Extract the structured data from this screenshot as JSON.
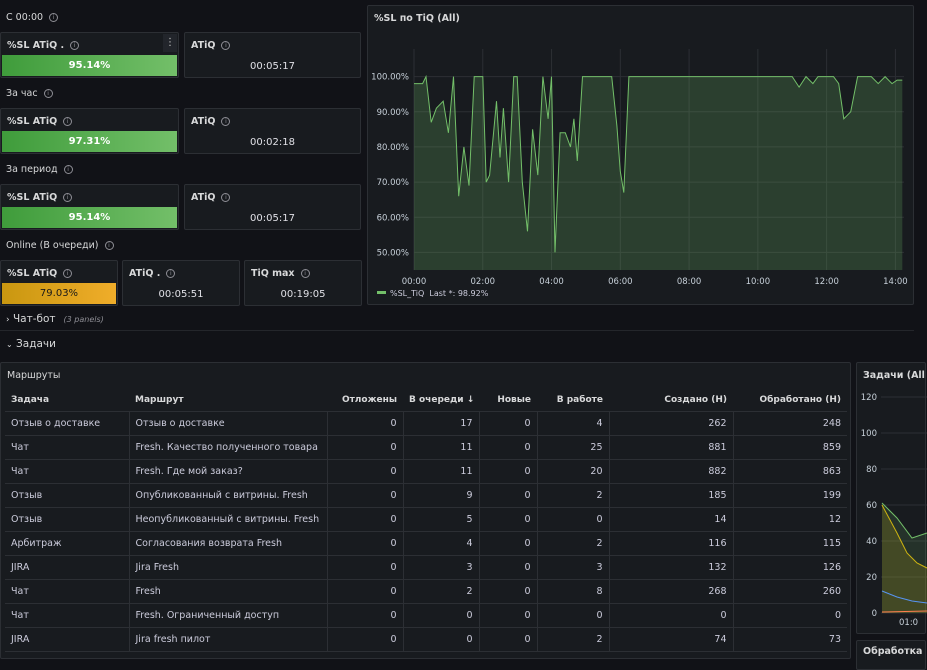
{
  "top_section": {
    "title": "С 00:00",
    "sl_label": "%SL ATiQ .",
    "sl_value": "95.14%",
    "atiq_label": "ATiQ",
    "atiq_value": "00:05:17"
  },
  "hour_section": {
    "title": "За час",
    "sl_label": "%SL ATiQ",
    "sl_value": "97.31%",
    "atiq_label": "ATiQ",
    "atiq_value": "00:02:18"
  },
  "period_section": {
    "title": "За период",
    "sl_label": "%SL ATiQ",
    "sl_value": "95.14%",
    "atiq_label": "ATiQ",
    "atiq_value": "00:05:17"
  },
  "online_section": {
    "title": "Online (В очереди)",
    "sl_label": "%SL ATiQ",
    "sl_value": "79.03%",
    "atiq_label": "ATiQ .",
    "atiq_value": "00:05:51",
    "tiqmax_label": "TiQ max",
    "tiqmax_value": "00:19:05"
  },
  "chatbot_row": {
    "title": "Чат-бот",
    "sub": "(3 panels)"
  },
  "tasks_row": {
    "title": "Задачи"
  },
  "sl_chart": {
    "title": "%SL по TiQ (All)",
    "legend_label": "%SL_TiQ",
    "legend_last": "Last *: 98.92%",
    "color": "#73bf69"
  },
  "chart_data": {
    "type": "area",
    "title": "%SL по TiQ (All)",
    "xlabel": "",
    "ylabel": "",
    "x_ticks": [
      "00:00",
      "02:00",
      "04:00",
      "06:00",
      "08:00",
      "10:00",
      "12:00",
      "14:00"
    ],
    "y_ticks": [
      "50.00%",
      "60.00%",
      "70.00%",
      "80.00%",
      "90.00%",
      "100.00%"
    ],
    "xlim": [
      0,
      14.25
    ],
    "ylim": [
      45,
      105
    ],
    "grid": true,
    "legend": "bottom-left",
    "series": [
      {
        "name": "%SL_TiQ",
        "x": [
          0,
          0.25,
          0.35,
          0.5,
          0.65,
          0.85,
          1.0,
          1.15,
          1.3,
          1.45,
          1.6,
          1.75,
          1.9,
          2.0,
          2.1,
          2.2,
          2.4,
          2.5,
          2.6,
          2.75,
          2.9,
          3.0,
          3.15,
          3.3,
          3.45,
          3.6,
          3.75,
          3.9,
          4.0,
          4.1,
          4.25,
          4.4,
          4.55,
          4.65,
          4.75,
          4.9,
          5.05,
          5.15,
          5.3,
          5.45,
          5.6,
          5.75,
          5.9,
          6.0,
          6.1,
          6.25,
          6.4,
          6.55,
          6.7,
          6.85,
          7.0,
          7.15,
          7.3,
          7.45,
          7.6,
          7.75,
          7.9,
          8.05,
          8.2,
          8.4,
          8.6,
          8.8,
          9.0,
          9.2,
          9.4,
          9.6,
          9.8,
          10.0,
          10.2,
          10.4,
          10.6,
          10.8,
          11.0,
          11.2,
          11.4,
          11.6,
          11.75,
          11.9,
          12.0,
          12.1,
          12.2,
          12.35,
          12.5,
          12.7,
          12.9,
          13.1,
          13.3,
          13.5,
          13.7,
          13.9,
          14.05,
          14.2
        ],
        "y": [
          98,
          98,
          100,
          87,
          91,
          93,
          84,
          100,
          66,
          80,
          69,
          100,
          100,
          100,
          70,
          72,
          93,
          77,
          91,
          70,
          100,
          100,
          70,
          56,
          85,
          72,
          100,
          88,
          100,
          50,
          84,
          84,
          80,
          88,
          76,
          100,
          100,
          100,
          100,
          100,
          100,
          100,
          86,
          73,
          67,
          100,
          100,
          100,
          100,
          100,
          100,
          100,
          100,
          100,
          100,
          100,
          100,
          100,
          100,
          100,
          100,
          100,
          100,
          100,
          100,
          100,
          100,
          100,
          100,
          100,
          100,
          100,
          100,
          97,
          100,
          98,
          100,
          100,
          100,
          100,
          100,
          98,
          88,
          90,
          100,
          100,
          100,
          98,
          100,
          98,
          99,
          99
        ]
      }
    ]
  },
  "routes_table": {
    "title": "Маршруты",
    "headers": [
      "Задача",
      "Маршрут",
      "Отложены",
      "В очереди",
      "Новые",
      "В работе",
      "Создано (Н)",
      "Обработано (Н)"
    ],
    "sort_glyph": "↓",
    "rows": [
      [
        "Отзыв о доставке",
        "Отзыв о доставке",
        "0",
        "17",
        "0",
        "4",
        "262",
        "248"
      ],
      [
        "Чат",
        "Fresh. Качество полученного товара",
        "0",
        "11",
        "0",
        "25",
        "881",
        "859"
      ],
      [
        "Чат",
        "Fresh. Где мой заказ?",
        "0",
        "11",
        "0",
        "20",
        "882",
        "863"
      ],
      [
        "Отзыв",
        "Опубликованный с витрины. Fresh",
        "0",
        "9",
        "0",
        "2",
        "185",
        "199"
      ],
      [
        "Отзыв",
        "Неопубликованный с витрины. Fresh",
        "0",
        "5",
        "0",
        "0",
        "14",
        "12"
      ],
      [
        "Арбитраж",
        "Согласования возврата Fresh",
        "0",
        "4",
        "0",
        "2",
        "116",
        "115"
      ],
      [
        "JIRA",
        "Jira Fresh",
        "0",
        "3",
        "0",
        "3",
        "132",
        "126"
      ],
      [
        "Чат",
        "Fresh",
        "0",
        "2",
        "0",
        "8",
        "268",
        "260"
      ],
      [
        "Чат",
        "Fresh. Ограниченный доступ",
        "0",
        "0",
        "0",
        "0",
        "0",
        "0"
      ],
      [
        "JIRA",
        "Jira fresh пилот",
        "0",
        "0",
        "0",
        "2",
        "74",
        "73"
      ]
    ]
  },
  "tasks_chart": {
    "title": "Задачи (All",
    "y_ticks": [
      "120",
      "100",
      "80",
      "60",
      "40",
      "20",
      "0"
    ],
    "x_tick": "01:0"
  },
  "processing_panel": {
    "title": "Обработка"
  },
  "icons": {
    "info": "info-icon",
    "menu": "menu-dots-icon",
    "chevron_right": "chevron-right-icon",
    "chevron_down": "chevron-down-icon",
    "sort": "sort-desc-icon"
  }
}
